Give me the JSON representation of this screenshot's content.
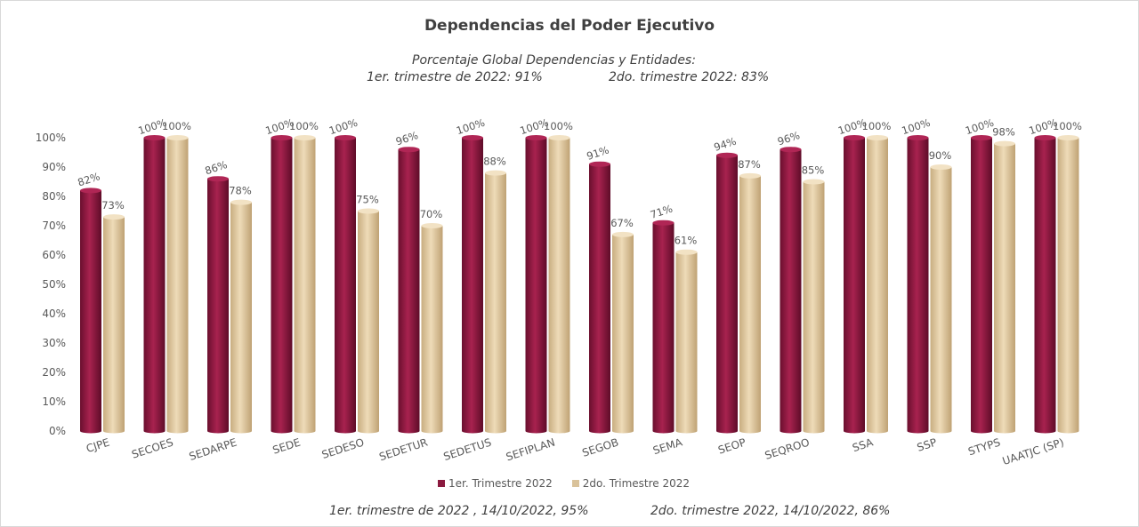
{
  "title": "Dependencias del Poder Ejecutivo",
  "subtitle": {
    "line1": "Porcentaje Global  Dependencias y Entidades:",
    "line2_left": "1er. trimestre de 2022: 91%",
    "line2_right": "2do. trimestre 2022: 83%"
  },
  "footer": {
    "left": "1er. trimestre de 2022 , 14/10/2022, 95%",
    "right": "2do. trimestre 2022, 14/10/2022, 86%"
  },
  "colors": {
    "series1": "#8b1a3f",
    "series2": "#d9c29a"
  },
  "chart_data": {
    "type": "bar",
    "categories": [
      "CJPE",
      "SECOES",
      "SEDARPE",
      "SEDE",
      "SEDESO",
      "SEDETUR",
      "SEDETUS",
      "SEFIPLAN",
      "SEGOB",
      "SEMA",
      "SEOP",
      "SEQROO",
      "SSA",
      "SSP",
      "STYPS",
      "UAATJC (SP)"
    ],
    "series": [
      {
        "name": "1er. Trimestre 2022",
        "values": [
          82,
          100,
          86,
          100,
          100,
          96,
          100,
          100,
          91,
          71,
          94,
          96,
          100,
          100,
          100,
          100
        ]
      },
      {
        "name": "2do. Trimestre 2022",
        "values": [
          73,
          100,
          78,
          100,
          75,
          70,
          88,
          100,
          67,
          61,
          87,
          85,
          100,
          90,
          98,
          100
        ]
      }
    ],
    "yticks": [
      "0%",
      "10%",
      "20%",
      "30%",
      "40%",
      "50%",
      "60%",
      "70%",
      "80%",
      "90%",
      "100%"
    ],
    "ylim": [
      0,
      100
    ],
    "grid": false,
    "legend_position": "bottom",
    "value_format": "percent"
  }
}
